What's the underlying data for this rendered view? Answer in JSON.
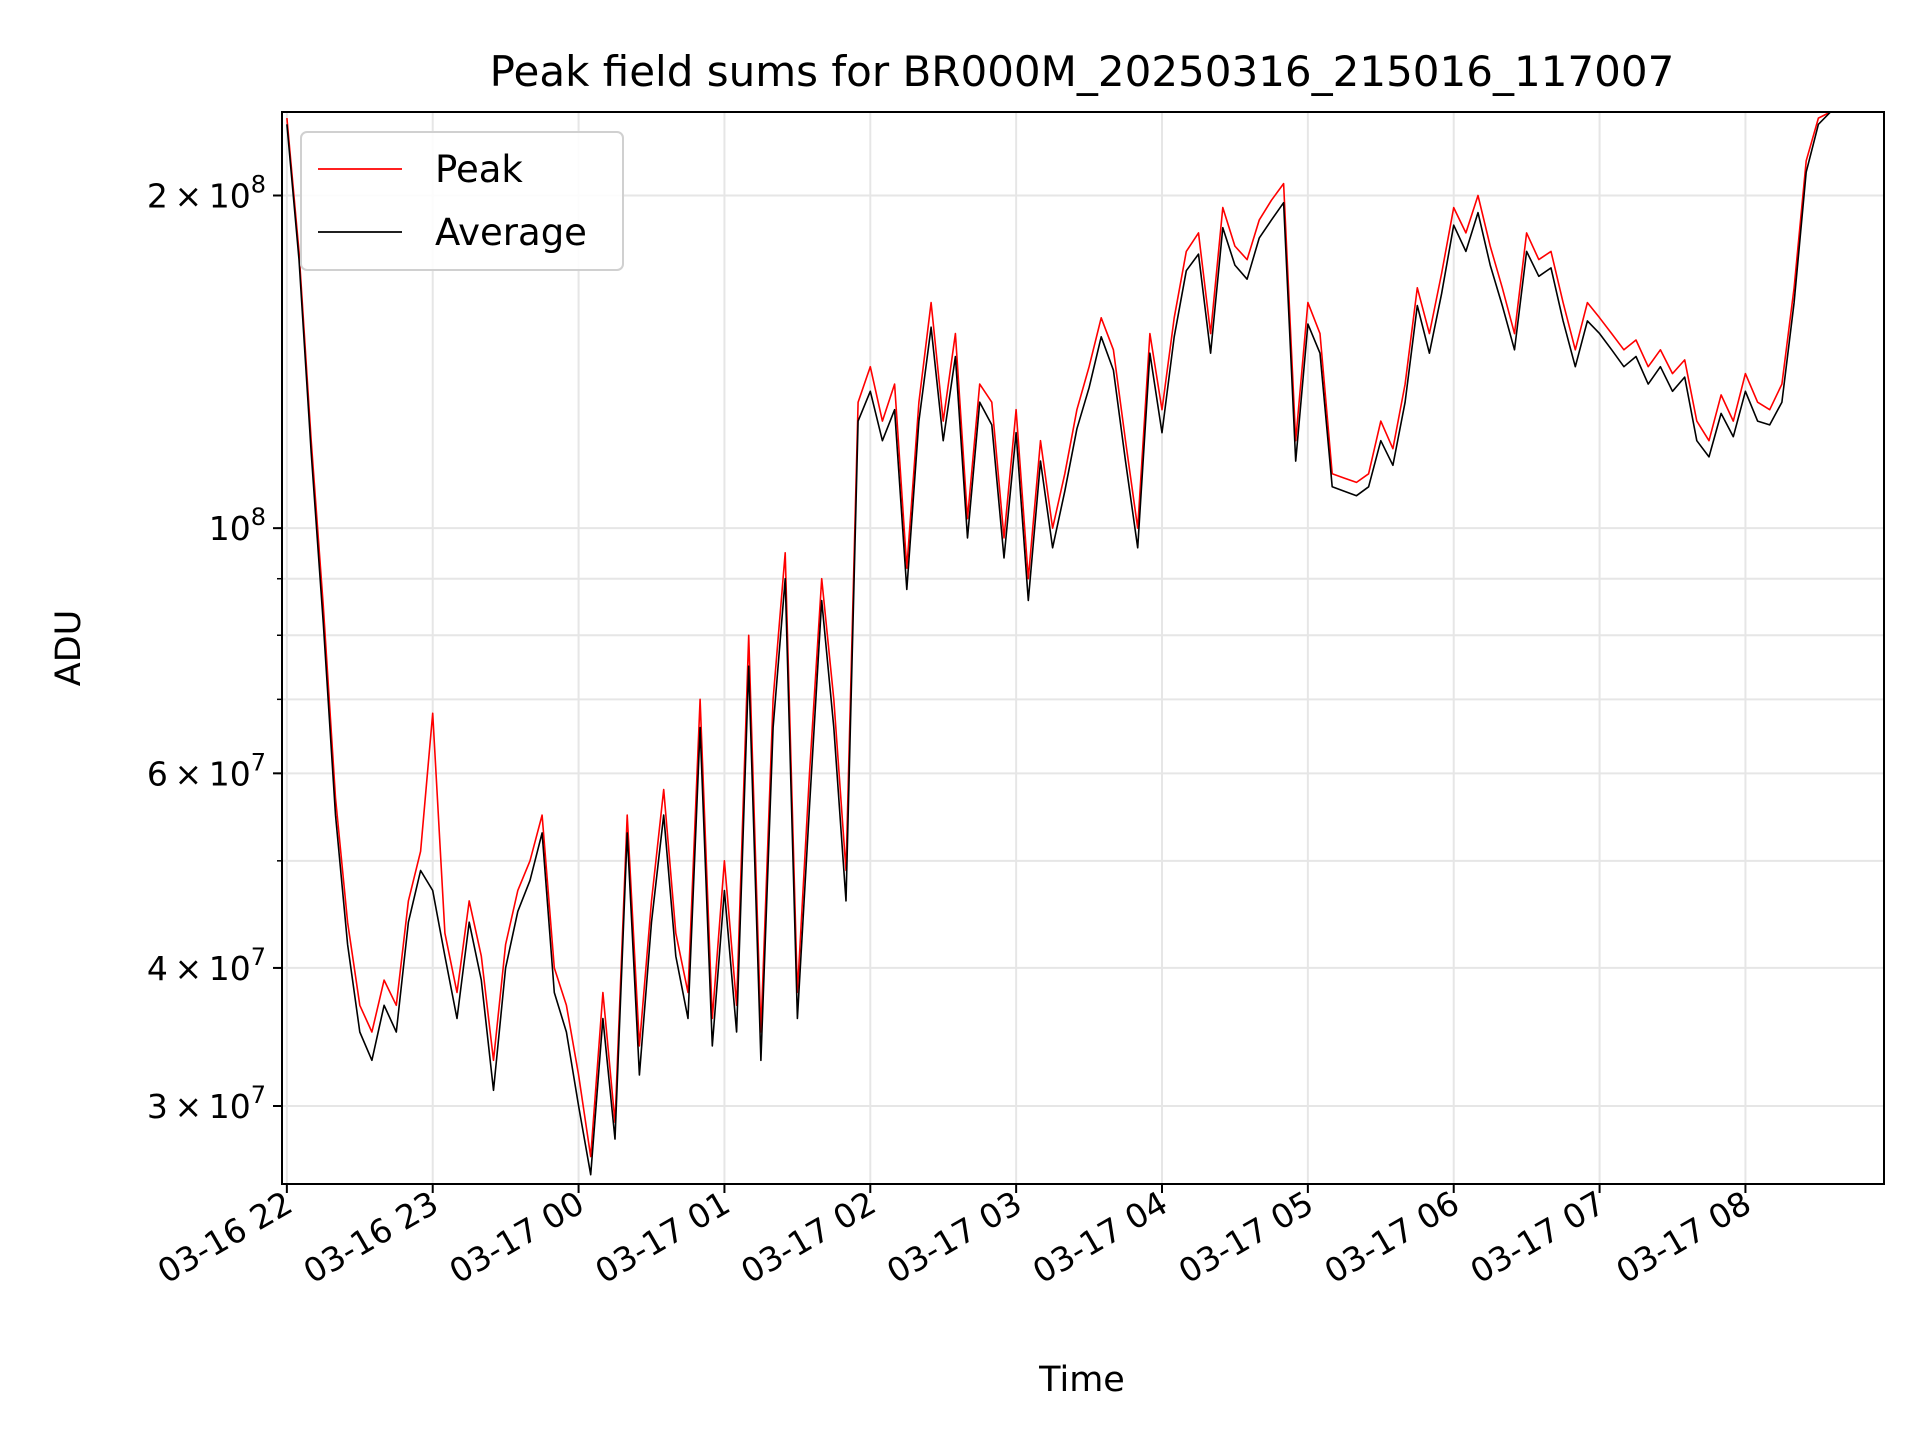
{
  "chart_data": {
    "type": "line",
    "title": "Peak field sums for BR000M_20250316_215016_117007",
    "xlabel": "Time",
    "ylabel": "ADU",
    "y_scale": "log",
    "ylim": [
      25500000,
      238000000
    ],
    "xlim": [
      "2025-03-16 21:58",
      "2025-03-17 08:57"
    ],
    "grid": true,
    "legend_position": "top-left",
    "x_ticks": [
      "03-16 22",
      "03-16 23",
      "03-17 00",
      "03-17 01",
      "03-17 02",
      "03-17 03",
      "03-17 04",
      "03-17 05",
      "03-17 06",
      "03-17 07",
      "03-17 08"
    ],
    "y_ticks": [
      {
        "value": 200000000,
        "mantissa": "2",
        "exponent": "8"
      },
      {
        "value": 100000000,
        "mantissa": "",
        "exponent": "8"
      },
      {
        "value": 60000000,
        "mantissa": "6",
        "exponent": "7"
      },
      {
        "value": 40000000,
        "mantissa": "4",
        "exponent": "7"
      },
      {
        "value": 30000000,
        "mantissa": "3",
        "exponent": "7"
      }
    ],
    "series": [
      {
        "name": "Peak",
        "color": "#ff0000",
        "x": [
          "2025-03-16 22:00",
          "2025-03-16 22:05",
          "2025-03-16 22:10",
          "2025-03-16 22:15",
          "2025-03-16 22:20",
          "2025-03-16 22:25",
          "2025-03-16 22:30",
          "2025-03-16 22:35",
          "2025-03-16 22:40",
          "2025-03-16 22:45",
          "2025-03-16 22:50",
          "2025-03-16 22:55",
          "2025-03-16 23:00",
          "2025-03-16 23:05",
          "2025-03-16 23:10",
          "2025-03-16 23:15",
          "2025-03-16 23:20",
          "2025-03-16 23:25",
          "2025-03-16 23:30",
          "2025-03-16 23:35",
          "2025-03-16 23:40",
          "2025-03-16 23:45",
          "2025-03-16 23:50",
          "2025-03-16 23:55",
          "2025-03-17 00:00",
          "2025-03-17 00:05",
          "2025-03-17 00:10",
          "2025-03-17 00:15",
          "2025-03-17 00:20",
          "2025-03-17 00:25",
          "2025-03-17 00:30",
          "2025-03-17 00:35",
          "2025-03-17 00:40",
          "2025-03-17 00:45",
          "2025-03-17 00:50",
          "2025-03-17 00:55",
          "2025-03-17 01:00",
          "2025-03-17 01:05",
          "2025-03-17 01:10",
          "2025-03-17 01:15",
          "2025-03-17 01:20",
          "2025-03-17 01:25",
          "2025-03-17 01:30",
          "2025-03-17 01:35",
          "2025-03-17 01:40",
          "2025-03-17 01:45",
          "2025-03-17 01:50",
          "2025-03-17 01:55",
          "2025-03-17 02:00",
          "2025-03-17 02:05",
          "2025-03-17 02:10",
          "2025-03-17 02:15",
          "2025-03-17 02:20",
          "2025-03-17 02:25",
          "2025-03-17 02:30",
          "2025-03-17 02:35",
          "2025-03-17 02:40",
          "2025-03-17 02:45",
          "2025-03-17 02:50",
          "2025-03-17 02:55",
          "2025-03-17 03:00",
          "2025-03-17 03:05",
          "2025-03-17 03:10",
          "2025-03-17 03:15",
          "2025-03-17 03:20",
          "2025-03-17 03:25",
          "2025-03-17 03:30",
          "2025-03-17 03:35",
          "2025-03-17 03:40",
          "2025-03-17 03:45",
          "2025-03-17 03:50",
          "2025-03-17 03:55",
          "2025-03-17 04:00",
          "2025-03-17 04:05",
          "2025-03-17 04:10",
          "2025-03-17 04:15",
          "2025-03-17 04:20",
          "2025-03-17 04:25",
          "2025-03-17 04:30",
          "2025-03-17 04:35",
          "2025-03-17 04:40",
          "2025-03-17 04:45",
          "2025-03-17 04:50",
          "2025-03-17 04:55",
          "2025-03-17 05:00",
          "2025-03-17 05:05",
          "2025-03-17 05:10",
          "2025-03-17 05:15",
          "2025-03-17 05:20",
          "2025-03-17 05:25",
          "2025-03-17 05:30",
          "2025-03-17 05:35",
          "2025-03-17 05:40",
          "2025-03-17 05:45",
          "2025-03-17 05:50",
          "2025-03-17 05:55",
          "2025-03-17 06:00",
          "2025-03-17 06:05",
          "2025-03-17 06:10",
          "2025-03-17 06:15",
          "2025-03-17 06:20",
          "2025-03-17 06:25",
          "2025-03-17 06:30",
          "2025-03-17 06:35",
          "2025-03-17 06:40",
          "2025-03-17 06:45",
          "2025-03-17 06:50",
          "2025-03-17 06:55",
          "2025-03-17 07:00",
          "2025-03-17 07:05",
          "2025-03-17 07:10",
          "2025-03-17 07:15",
          "2025-03-17 07:20",
          "2025-03-17 07:25",
          "2025-03-17 07:30",
          "2025-03-17 07:35",
          "2025-03-17 07:40",
          "2025-03-17 07:45",
          "2025-03-17 07:50",
          "2025-03-17 07:55",
          "2025-03-17 08:00",
          "2025-03-17 08:05",
          "2025-03-17 08:10",
          "2025-03-17 08:15",
          "2025-03-17 08:20",
          "2025-03-17 08:25",
          "2025-03-17 08:30",
          "2025-03-17 08:35"
        ],
        "values": [
          235000000,
          178000000,
          120000000,
          85000000,
          57000000,
          44000000,
          37000000,
          35000000,
          39000000,
          37000000,
          46000000,
          51000000,
          68000000,
          43000000,
          38000000,
          46000000,
          41000000,
          33000000,
          42000000,
          47000000,
          50000000,
          55000000,
          40000000,
          37000000,
          32000000,
          27000000,
          38000000,
          29000000,
          55000000,
          34000000,
          46000000,
          58000000,
          43000000,
          38000000,
          70000000,
          36000000,
          50000000,
          37000000,
          80000000,
          35000000,
          70000000,
          95000000,
          38000000,
          60000000,
          90000000,
          70000000,
          49000000,
          130000000,
          140000000,
          125000000,
          135000000,
          92000000,
          130000000,
          160000000,
          125000000,
          150000000,
          102000000,
          135000000,
          130000000,
          98000000,
          128000000,
          90000000,
          120000000,
          100000000,
          112000000,
          128000000,
          140000000,
          155000000,
          145000000,
          120000000,
          100000000,
          150000000,
          128000000,
          155000000,
          178000000,
          185000000,
          150000000,
          195000000,
          180000000,
          175000000,
          190000000,
          198000000,
          205000000,
          120000000,
          160000000,
          150000000,
          112000000,
          111000000,
          110000000,
          112000000,
          125000000,
          118000000,
          135000000,
          165000000,
          150000000,
          170000000,
          195000000,
          185000000,
          200000000,
          180000000,
          165000000,
          150000000,
          185000000,
          175000000,
          178000000,
          160000000,
          145000000,
          160000000,
          155000000,
          150000000,
          145000000,
          148000000,
          140000000,
          145000000,
          138000000,
          142000000,
          125000000,
          120000000,
          132000000,
          125000000,
          138000000,
          130000000,
          128000000,
          135000000,
          165000000,
          215000000,
          235000000,
          238000000
        ]
      },
      {
        "name": "Average",
        "color": "#000000",
        "x": [
          "2025-03-16 22:00",
          "2025-03-16 22:05",
          "2025-03-16 22:10",
          "2025-03-16 22:15",
          "2025-03-16 22:20",
          "2025-03-16 22:25",
          "2025-03-16 22:30",
          "2025-03-16 22:35",
          "2025-03-16 22:40",
          "2025-03-16 22:45",
          "2025-03-16 22:50",
          "2025-03-16 22:55",
          "2025-03-16 23:00",
          "2025-03-16 23:05",
          "2025-03-16 23:10",
          "2025-03-16 23:15",
          "2025-03-16 23:20",
          "2025-03-16 23:25",
          "2025-03-16 23:30",
          "2025-03-16 23:35",
          "2025-03-16 23:40",
          "2025-03-16 23:45",
          "2025-03-16 23:50",
          "2025-03-16 23:55",
          "2025-03-17 00:00",
          "2025-03-17 00:05",
          "2025-03-17 00:10",
          "2025-03-17 00:15",
          "2025-03-17 00:20",
          "2025-03-17 00:25",
          "2025-03-17 00:30",
          "2025-03-17 00:35",
          "2025-03-17 00:40",
          "2025-03-17 00:45",
          "2025-03-17 00:50",
          "2025-03-17 00:55",
          "2025-03-17 01:00",
          "2025-03-17 01:05",
          "2025-03-17 01:10",
          "2025-03-17 01:15",
          "2025-03-17 01:20",
          "2025-03-17 01:25",
          "2025-03-17 01:30",
          "2025-03-17 01:35",
          "2025-03-17 01:40",
          "2025-03-17 01:45",
          "2025-03-17 01:50",
          "2025-03-17 01:55",
          "2025-03-17 02:00",
          "2025-03-17 02:05",
          "2025-03-17 02:10",
          "2025-03-17 02:15",
          "2025-03-17 02:20",
          "2025-03-17 02:25",
          "2025-03-17 02:30",
          "2025-03-17 02:35",
          "2025-03-17 02:40",
          "2025-03-17 02:45",
          "2025-03-17 02:50",
          "2025-03-17 02:55",
          "2025-03-17 03:00",
          "2025-03-17 03:05",
          "2025-03-17 03:10",
          "2025-03-17 03:15",
          "2025-03-17 03:20",
          "2025-03-17 03:25",
          "2025-03-17 03:30",
          "2025-03-17 03:35",
          "2025-03-17 03:40",
          "2025-03-17 03:45",
          "2025-03-17 03:50",
          "2025-03-17 03:55",
          "2025-03-17 04:00",
          "2025-03-17 04:05",
          "2025-03-17 04:10",
          "2025-03-17 04:15",
          "2025-03-17 04:20",
          "2025-03-17 04:25",
          "2025-03-17 04:30",
          "2025-03-17 04:35",
          "2025-03-17 04:40",
          "2025-03-17 04:45",
          "2025-03-17 04:50",
          "2025-03-17 04:55",
          "2025-03-17 05:00",
          "2025-03-17 05:05",
          "2025-03-17 05:10",
          "2025-03-17 05:15",
          "2025-03-17 05:20",
          "2025-03-17 05:25",
          "2025-03-17 05:30",
          "2025-03-17 05:35",
          "2025-03-17 05:40",
          "2025-03-17 05:45",
          "2025-03-17 05:50",
          "2025-03-17 05:55",
          "2025-03-17 06:00",
          "2025-03-17 06:05",
          "2025-03-17 06:10",
          "2025-03-17 06:15",
          "2025-03-17 06:20",
          "2025-03-17 06:25",
          "2025-03-17 06:30",
          "2025-03-17 06:35",
          "2025-03-17 06:40",
          "2025-03-17 06:45",
          "2025-03-17 06:50",
          "2025-03-17 06:55",
          "2025-03-17 07:00",
          "2025-03-17 07:05",
          "2025-03-17 07:10",
          "2025-03-17 07:15",
          "2025-03-17 07:20",
          "2025-03-17 07:25",
          "2025-03-17 07:30",
          "2025-03-17 07:35",
          "2025-03-17 07:40",
          "2025-03-17 07:45",
          "2025-03-17 07:50",
          "2025-03-17 07:55",
          "2025-03-17 08:00",
          "2025-03-17 08:05",
          "2025-03-17 08:10",
          "2025-03-17 08:15",
          "2025-03-17 08:20",
          "2025-03-17 08:25",
          "2025-03-17 08:30",
          "2025-03-17 08:35"
        ],
        "values": [
          232000000,
          175000000,
          117000000,
          82000000,
          55000000,
          42000000,
          35000000,
          33000000,
          37000000,
          35000000,
          44000000,
          49000000,
          47000000,
          41000000,
          36000000,
          44000000,
          39000000,
          31000000,
          40000000,
          45000000,
          48000000,
          53000000,
          38000000,
          35000000,
          30000000,
          26000000,
          36000000,
          28000000,
          53000000,
          32000000,
          44000000,
          55000000,
          41000000,
          36000000,
          66000000,
          34000000,
          47000000,
          35000000,
          75000000,
          33000000,
          66000000,
          90000000,
          36000000,
          56000000,
          86000000,
          66000000,
          46000000,
          125000000,
          133000000,
          120000000,
          128000000,
          88000000,
          125000000,
          152000000,
          120000000,
          143000000,
          98000000,
          130000000,
          124000000,
          94000000,
          122000000,
          86000000,
          115000000,
          96000000,
          108000000,
          123000000,
          134000000,
          149000000,
          139000000,
          115000000,
          96000000,
          144000000,
          122000000,
          149000000,
          171000000,
          177000000,
          144000000,
          187000000,
          173000000,
          168000000,
          183000000,
          190000000,
          197000000,
          115000000,
          153000000,
          144000000,
          109000000,
          108000000,
          107000000,
          109000000,
          120000000,
          114000000,
          130000000,
          159000000,
          144000000,
          163000000,
          188000000,
          178000000,
          193000000,
          173000000,
          159000000,
          145000000,
          178000000,
          169000000,
          172000000,
          154000000,
          140000000,
          154000000,
          150000000,
          145000000,
          140000000,
          143000000,
          135000000,
          140000000,
          133000000,
          137000000,
          120000000,
          116000000,
          127000000,
          121000000,
          133000000,
          125000000,
          124000000,
          130000000,
          160000000,
          210000000,
          232000000,
          238000000
        ]
      }
    ]
  }
}
